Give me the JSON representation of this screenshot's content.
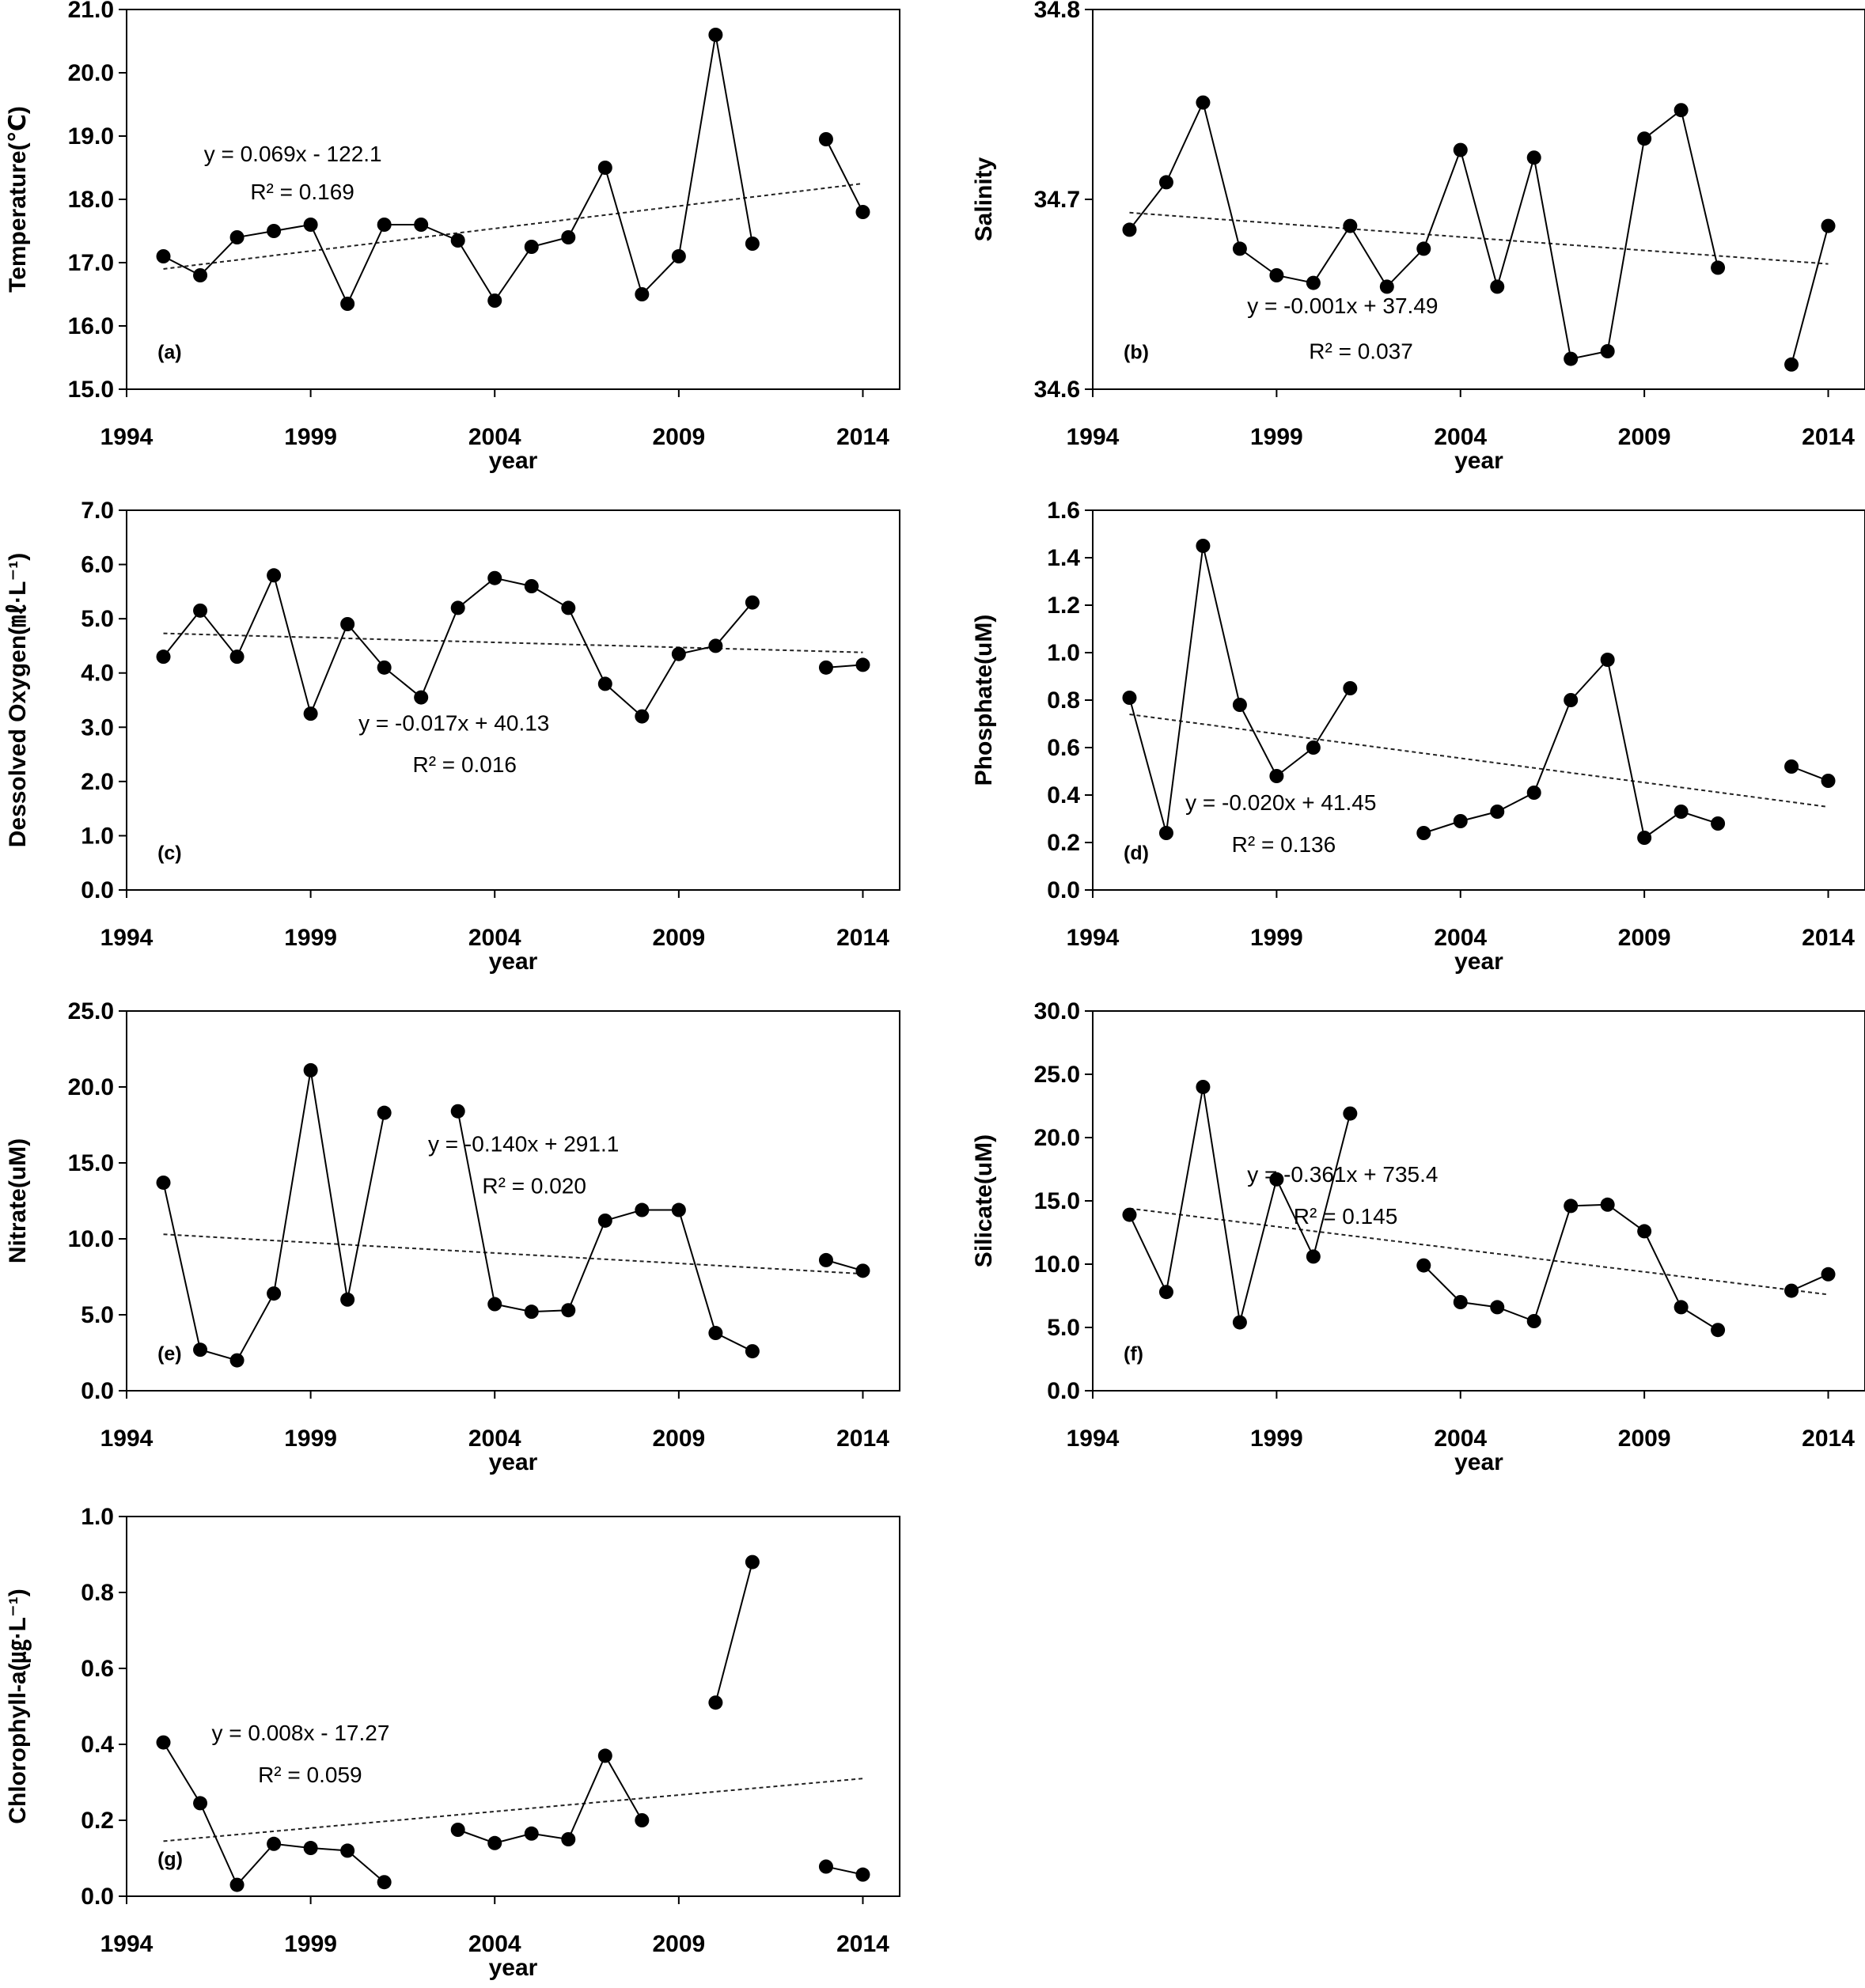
{
  "figure": {
    "xlabel": "year"
  },
  "chart_data": [
    {
      "type": "line",
      "panel": "(a)",
      "ylabel": "Temperature(℃)",
      "xlim": [
        1994,
        2015
      ],
      "xticks": [
        1994,
        1999,
        2004,
        2009,
        2014
      ],
      "ylim": [
        15.0,
        21.0
      ],
      "yticks": [
        "15.0",
        "16.0",
        "17.0",
        "18.0",
        "19.0",
        "20.0",
        "21.0"
      ],
      "segments": [
        [
          [
            1995,
            17.1
          ],
          [
            1996,
            16.8
          ],
          [
            1997,
            17.4
          ],
          [
            1998,
            17.5
          ],
          [
            1999,
            17.6
          ],
          [
            2000,
            16.35
          ],
          [
            2001,
            17.6
          ],
          [
            2002,
            17.6
          ],
          [
            2003,
            17.35
          ],
          [
            2004,
            16.4
          ],
          [
            2005,
            17.25
          ],
          [
            2006,
            17.4
          ],
          [
            2007,
            18.5
          ],
          [
            2008,
            16.5
          ],
          [
            2009,
            17.1
          ],
          [
            2010,
            20.6
          ],
          [
            2011,
            17.3
          ]
        ],
        [
          [
            2013,
            18.95
          ],
          [
            2014,
            17.8
          ]
        ]
      ],
      "trend": {
        "x": [
          1995,
          2014
        ],
        "y": [
          16.9,
          18.25
        ]
      },
      "equation": "y = 0.069x  - 122.1",
      "r2": "R² = 0.169"
    },
    {
      "type": "line",
      "panel": "(b)",
      "ylabel": "Salinity",
      "xlim": [
        1994,
        2015
      ],
      "xticks": [
        1994,
        1999,
        2004,
        2009,
        2014
      ],
      "ylim": [
        34.6,
        34.8
      ],
      "yticks": [
        "34.6",
        "34.7",
        "34.8"
      ],
      "segments": [
        [
          [
            1995,
            34.684
          ],
          [
            1996,
            34.709
          ],
          [
            1997,
            34.751
          ],
          [
            1998,
            34.674
          ],
          [
            1999,
            34.66
          ],
          [
            2000,
            34.656
          ],
          [
            2001,
            34.686
          ],
          [
            2002,
            34.654
          ],
          [
            2003,
            34.674
          ],
          [
            2004,
            34.726
          ],
          [
            2005,
            34.654
          ],
          [
            2006,
            34.722
          ],
          [
            2007,
            34.616
          ],
          [
            2008,
            34.62
          ],
          [
            2009,
            34.732
          ],
          [
            2010,
            34.747
          ],
          [
            2011,
            34.664
          ]
        ],
        [
          [
            2013,
            34.613
          ],
          [
            2014,
            34.686
          ]
        ]
      ],
      "trend": {
        "x": [
          1995,
          2014
        ],
        "y": [
          34.693,
          34.666
        ]
      },
      "equation": "y = -0.001x  + 37.49",
      "r2": "R² = 0.037"
    },
    {
      "type": "line",
      "panel": "(c)",
      "ylabel": "Dessolved Oxygen(㎖·L⁻¹)",
      "xlim": [
        1994,
        2015
      ],
      "xticks": [
        1994,
        1999,
        2004,
        2009,
        2014
      ],
      "ylim": [
        0.0,
        7.0
      ],
      "yticks": [
        "0.0",
        "1.0",
        "2.0",
        "3.0",
        "4.0",
        "5.0",
        "6.0",
        "7.0"
      ],
      "segments": [
        [
          [
            1995,
            4.3
          ],
          [
            1996,
            5.15
          ],
          [
            1997,
            4.3
          ],
          [
            1998,
            5.8
          ],
          [
            1999,
            3.25
          ],
          [
            2000,
            4.9
          ],
          [
            2001,
            4.1
          ],
          [
            2002,
            3.55
          ],
          [
            2003,
            5.2
          ],
          [
            2004,
            5.75
          ],
          [
            2005,
            5.6
          ],
          [
            2006,
            5.2
          ],
          [
            2007,
            3.8
          ],
          [
            2008,
            3.2
          ],
          [
            2009,
            4.35
          ],
          [
            2010,
            4.5
          ],
          [
            2011,
            5.3
          ]
        ],
        [
          [
            2013,
            4.1
          ],
          [
            2014,
            4.15
          ]
        ]
      ],
      "trend": {
        "x": [
          1995,
          2014
        ],
        "y": [
          4.73,
          4.38
        ]
      },
      "equation": "y = -0.017x  + 40.13",
      "r2": "R² = 0.016"
    },
    {
      "type": "line",
      "panel": "(d)",
      "ylabel": "Phosphate(uM)",
      "xlim": [
        1994,
        2015
      ],
      "xticks": [
        1994,
        1999,
        2004,
        2009,
        2014
      ],
      "ylim": [
        0.0,
        1.6
      ],
      "yticks": [
        "0.0",
        "0.2",
        "0.4",
        "0.6",
        "0.8",
        "1.0",
        "1.2",
        "1.4",
        "1.6"
      ],
      "segments": [
        [
          [
            1995,
            0.81
          ],
          [
            1996,
            0.24
          ],
          [
            1997,
            1.45
          ],
          [
            1998,
            0.78
          ],
          [
            1999,
            0.48
          ],
          [
            2000,
            0.6
          ],
          [
            2001,
            0.85
          ]
        ],
        [
          [
            2003,
            0.24
          ],
          [
            2004,
            0.29
          ],
          [
            2005,
            0.33
          ],
          [
            2006,
            0.41
          ],
          [
            2007,
            0.8
          ],
          [
            2008,
            0.97
          ],
          [
            2009,
            0.22
          ],
          [
            2010,
            0.33
          ],
          [
            2011,
            0.28
          ]
        ],
        [
          [
            2013,
            0.52
          ],
          [
            2014,
            0.46
          ]
        ]
      ],
      "trend": {
        "x": [
          1995,
          2014
        ],
        "y": [
          0.74,
          0.35
        ]
      },
      "equation": "y = -0.020x  + 41.45",
      "r2": "R² = 0.136"
    },
    {
      "type": "line",
      "panel": "(e)",
      "ylabel": "Nitrate(uM)",
      "xlim": [
        1994,
        2015
      ],
      "xticks": [
        1994,
        1999,
        2004,
        2009,
        2014
      ],
      "ylim": [
        0.0,
        25.0
      ],
      "yticks": [
        "0.0",
        "5.0",
        "10.0",
        "15.0",
        "20.0",
        "25.0"
      ],
      "segments": [
        [
          [
            1995,
            13.7
          ],
          [
            1996,
            2.7
          ],
          [
            1997,
            2.0
          ],
          [
            1998,
            6.4
          ],
          [
            1999,
            21.1
          ],
          [
            2000,
            6.0
          ],
          [
            2001,
            18.3
          ]
        ],
        [
          [
            2003,
            18.4
          ],
          [
            2004,
            5.7
          ],
          [
            2005,
            5.2
          ],
          [
            2006,
            5.3
          ],
          [
            2007,
            11.2
          ],
          [
            2008,
            11.9
          ],
          [
            2009,
            11.9
          ],
          [
            2010,
            3.8
          ],
          [
            2011,
            2.6
          ]
        ],
        [
          [
            2013,
            8.6
          ],
          [
            2014,
            7.9
          ]
        ]
      ],
      "trend": {
        "x": [
          1995,
          2014
        ],
        "y": [
          10.3,
          7.7
        ]
      },
      "equation": "y = -0.140x  + 291.1",
      "r2": "R² = 0.020"
    },
    {
      "type": "line",
      "panel": "(f)",
      "ylabel": "Silicate(uM)",
      "xlim": [
        1994,
        2015
      ],
      "xticks": [
        1994,
        1999,
        2004,
        2009,
        2014
      ],
      "ylim": [
        0.0,
        30.0
      ],
      "yticks": [
        "0.0",
        "5.0",
        "10.0",
        "15.0",
        "20.0",
        "25.0",
        "30.0"
      ],
      "segments": [
        [
          [
            1995,
            13.9
          ],
          [
            1996,
            7.8
          ],
          [
            1997,
            24.0
          ],
          [
            1998,
            5.4
          ],
          [
            1999,
            16.7
          ],
          [
            2000,
            10.6
          ],
          [
            2001,
            21.9
          ]
        ],
        [
          [
            2003,
            9.9
          ],
          [
            2004,
            7.0
          ],
          [
            2005,
            6.6
          ],
          [
            2006,
            5.5
          ],
          [
            2007,
            14.6
          ],
          [
            2008,
            14.7
          ],
          [
            2009,
            12.6
          ],
          [
            2010,
            6.6
          ],
          [
            2011,
            4.8
          ]
        ],
        [
          [
            2013,
            7.9
          ],
          [
            2014,
            9.2
          ]
        ]
      ],
      "trend": {
        "x": [
          1995,
          2014
        ],
        "y": [
          14.4,
          7.6
        ]
      },
      "equation": "y = -0.361x  + 735.4",
      "r2": "R² = 0.145"
    },
    {
      "type": "line",
      "panel": "(g)",
      "ylabel": "Chlorophyll-a(㎍·L⁻¹)",
      "xlim": [
        1994,
        2015
      ],
      "xticks": [
        1994,
        1999,
        2004,
        2009,
        2014
      ],
      "ylim": [
        0.0,
        1.0
      ],
      "yticks": [
        "0.0",
        "0.2",
        "0.4",
        "0.6",
        "0.8",
        "1.0"
      ],
      "segments": [
        [
          [
            1995,
            0.405
          ],
          [
            1996,
            0.245
          ],
          [
            1997,
            0.03
          ],
          [
            1998,
            0.138
          ],
          [
            1999,
            0.127
          ],
          [
            2000,
            0.12
          ],
          [
            2001,
            0.037
          ]
        ],
        [
          [
            2003,
            0.175
          ],
          [
            2004,
            0.14
          ],
          [
            2005,
            0.165
          ],
          [
            2006,
            0.15
          ],
          [
            2007,
            0.37
          ],
          [
            2008,
            0.2
          ]
        ],
        [
          [
            2010,
            0.51
          ],
          [
            2011,
            0.88
          ]
        ],
        [
          [
            2013,
            0.078
          ],
          [
            2014,
            0.057
          ]
        ]
      ],
      "trend": {
        "x": [
          1995,
          2014
        ],
        "y": [
          0.145,
          0.31
        ]
      },
      "equation": "y = 0.008x  - 17.27",
      "r2": "R² = 0.059"
    }
  ]
}
